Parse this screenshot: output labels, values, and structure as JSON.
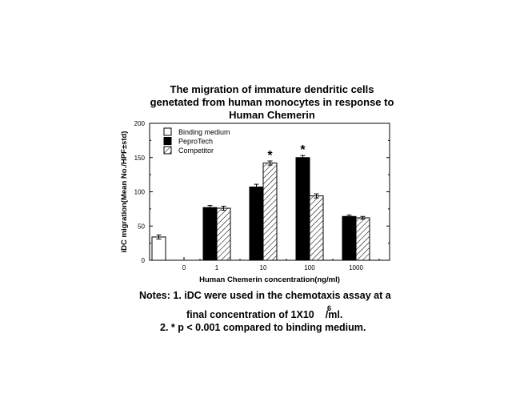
{
  "chart_data": {
    "type": "bar",
    "title": [
      "The migration of immature dendritic cells",
      "genetated from human monocytes in response to",
      "Human Chemerin"
    ],
    "xlabel": "Human Chemerin concentration(ng/ml)",
    "ylabel": "iDC migration(Mean No./HPF±std)",
    "categories": [
      "0",
      "1",
      "10",
      "100",
      "1000"
    ],
    "ylim": [
      0,
      200
    ],
    "yticks": [
      "0",
      "50",
      "100",
      "150",
      "200"
    ],
    "legend_position": "top-left",
    "series": [
      {
        "name": "Binding medium",
        "fill": "white",
        "values": [
          34,
          null,
          null,
          null,
          null
        ],
        "errors": [
          3,
          null,
          null,
          null,
          null
        ]
      },
      {
        "name": "PeproTech",
        "fill": "black",
        "values": [
          null,
          77,
          107,
          150,
          64
        ],
        "errors": [
          null,
          3,
          4,
          3,
          2
        ]
      },
      {
        "name": "Competitor",
        "fill": "hatched",
        "values": [
          null,
          76,
          142,
          94,
          62
        ],
        "errors": [
          null,
          3,
          3,
          3,
          2
        ]
      }
    ],
    "annotations": [
      {
        "text": "*",
        "category": "10",
        "series": "Competitor"
      },
      {
        "text": "*",
        "category": "100",
        "series": "PeproTech"
      }
    ]
  },
  "notes": {
    "line1": "Notes: 1. iDC were used in the chemotaxis assay at a",
    "line2": "final concentration of 1X10",
    "line2_sup": "6",
    "line2_end": "/ml.",
    "line3": "2. * p < 0.001 compared to binding medium."
  }
}
